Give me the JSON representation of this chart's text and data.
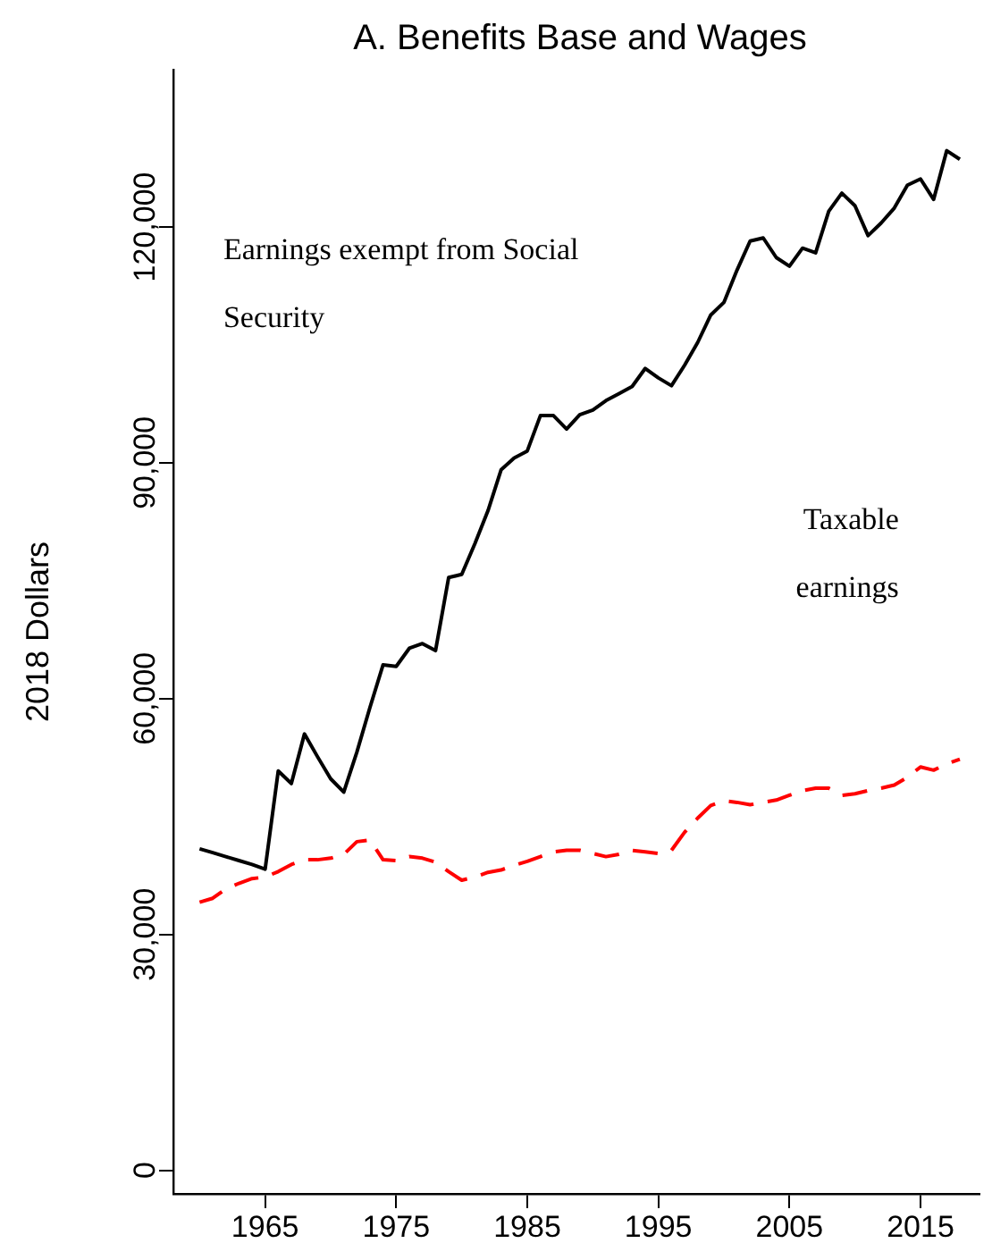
{
  "chart_data": {
    "type": "line",
    "title": "A. Benefits Base and Wages",
    "ylabel": "2018 Dollars",
    "x": [
      1960,
      1961,
      1962,
      1963,
      1964,
      1965,
      1966,
      1967,
      1968,
      1969,
      1970,
      1971,
      1972,
      1973,
      1974,
      1975,
      1976,
      1977,
      1978,
      1979,
      1980,
      1981,
      1982,
      1983,
      1984,
      1985,
      1986,
      1987,
      1988,
      1989,
      1990,
      1991,
      1992,
      1993,
      1994,
      1995,
      1996,
      1997,
      1998,
      1999,
      2000,
      2001,
      2002,
      2003,
      2004,
      2005,
      2006,
      2007,
      2008,
      2009,
      2010,
      2011,
      2012,
      2013,
      2014,
      2015,
      2016,
      2017,
      2018
    ],
    "xlim": [
      1958,
      2019.5
    ],
    "xticks": [
      1965,
      1975,
      1985,
      1995,
      2005,
      2015
    ],
    "ylim": [
      -3000,
      140000
    ],
    "yticks": [
      0,
      {
        "value": 30000,
        "label": "30,000"
      },
      {
        "value": 60000,
        "label": "60,000"
      },
      {
        "value": 90000,
        "label": "90,000"
      },
      {
        "value": 120000,
        "label": "120,000"
      }
    ],
    "grid": false,
    "legend": false,
    "marker": "none",
    "series": [
      {
        "color": "#000000",
        "line_style": "solid",
        "values": [
          40900,
          40400,
          39900,
          39400,
          38900,
          38300,
          50800,
          49200,
          55500,
          52600,
          49800,
          48100,
          53200,
          58900,
          64300,
          64100,
          66400,
          67000,
          66100,
          75400,
          75800,
          79700,
          83900,
          89100,
          90600,
          91500,
          96000,
          96000,
          94300,
          96100,
          96700,
          97900,
          98800,
          99700,
          102000,
          100800,
          99800,
          102400,
          105300,
          108800,
          110400,
          114500,
          118200,
          118600,
          116100,
          115000,
          117300,
          116700,
          122000,
          124300,
          122700,
          118900,
          120500,
          122400,
          125300,
          126100,
          123500,
          129700,
          128600
        ]
      },
      {
        "color": "#ff0000",
        "line_style": "dashed",
        "values": [
          34100,
          34600,
          35800,
          36500,
          37100,
          37300,
          38000,
          38900,
          39500,
          39500,
          39700,
          40200,
          41800,
          42000,
          39500,
          39400,
          39900,
          39700,
          39200,
          38000,
          36900,
          37300,
          37900,
          38200,
          38800,
          39300,
          39900,
          40500,
          40700,
          40700,
          40300,
          39900,
          40200,
          40700,
          40500,
          40300,
          40700,
          43000,
          44800,
          46400,
          47000,
          46800,
          46500,
          46800,
          47100,
          47700,
          48300,
          48600,
          48600,
          47700,
          47900,
          48300,
          48600,
          49000,
          50000,
          51300,
          50900,
          51700,
          52300
        ]
      }
    ],
    "annotations": [
      "Earnings exempt from Social Security",
      "Taxable earnings"
    ]
  }
}
